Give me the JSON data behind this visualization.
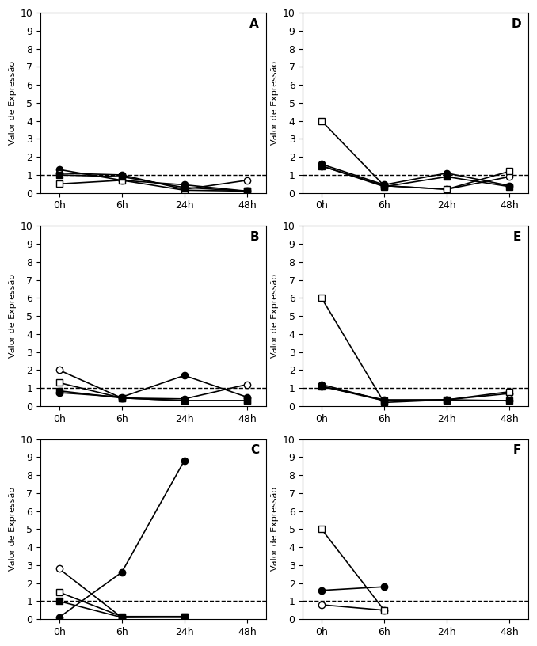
{
  "x_ticks": [
    0,
    1,
    2,
    3
  ],
  "x_labels": [
    "0h",
    "6h",
    "24h",
    "48h"
  ],
  "ylabel": "Valor de Expressão",
  "ylim": [
    0,
    10
  ],
  "yticks": [
    0,
    1,
    2,
    3,
    4,
    5,
    6,
    7,
    8,
    9,
    10
  ],
  "dashed_y": 1.0,
  "panels": [
    {
      "label": "A",
      "series": [
        {
          "style": "filled_circle",
          "y": [
            1.3,
            0.7,
            0.45,
            0.1
          ]
        },
        {
          "style": "open_circle",
          "y": [
            1.1,
            1.0,
            0.2,
            0.7
          ]
        },
        {
          "style": "open_square",
          "y": [
            0.5,
            0.7,
            0.15,
            0.1
          ]
        },
        {
          "style": "filled_square",
          "y": [
            1.0,
            0.9,
            0.3,
            0.1
          ]
        }
      ]
    },
    {
      "label": "D",
      "series": [
        {
          "style": "filled_circle",
          "y": [
            1.6,
            0.45,
            1.1,
            0.4
          ]
        },
        {
          "style": "open_circle",
          "y": [
            1.5,
            0.4,
            0.2,
            0.9
          ]
        },
        {
          "style": "open_square",
          "y": [
            4.0,
            0.4,
            0.2,
            1.2
          ]
        },
        {
          "style": "filled_square",
          "y": [
            1.5,
            0.35,
            0.9,
            0.35
          ]
        }
      ]
    },
    {
      "label": "B",
      "series": [
        {
          "style": "filled_circle",
          "y": [
            0.75,
            0.5,
            1.7,
            0.5
          ]
        },
        {
          "style": "open_circle",
          "y": [
            2.0,
            0.45,
            0.4,
            1.2
          ]
        },
        {
          "style": "open_square",
          "y": [
            1.3,
            0.45,
            0.3,
            0.3
          ]
        },
        {
          "style": "filled_square",
          "y": [
            0.85,
            0.45,
            0.3,
            0.3
          ]
        }
      ]
    },
    {
      "label": "E",
      "series": [
        {
          "style": "filled_circle",
          "y": [
            1.2,
            0.3,
            0.35,
            0.3
          ]
        },
        {
          "style": "open_circle",
          "y": [
            1.1,
            0.35,
            0.35,
            0.7
          ]
        },
        {
          "style": "open_square",
          "y": [
            6.0,
            0.2,
            0.35,
            0.8
          ]
        },
        {
          "style": "filled_square",
          "y": [
            1.1,
            0.3,
            0.3,
            0.3
          ]
        }
      ]
    },
    {
      "label": "C",
      "series": [
        {
          "style": "filled_circle",
          "y": [
            0.1,
            2.6,
            8.8,
            null
          ]
        },
        {
          "style": "open_circle",
          "y": [
            2.8,
            0.1,
            0.1,
            null
          ]
        },
        {
          "style": "open_square",
          "y": [
            1.5,
            0.15,
            0.15,
            null
          ]
        },
        {
          "style": "filled_square",
          "y": [
            1.0,
            0.1,
            0.15,
            null
          ]
        }
      ]
    },
    {
      "label": "F",
      "series": [
        {
          "style": "filled_circle",
          "y": [
            1.6,
            1.8,
            null,
            null
          ]
        },
        {
          "style": "open_circle",
          "y": [
            0.8,
            0.5,
            null,
            null
          ]
        },
        {
          "style": "open_square",
          "y": [
            5.0,
            0.5,
            null,
            null
          ]
        },
        {
          "style": "filled_square",
          "y": [
            null,
            null,
            null,
            null
          ]
        }
      ]
    }
  ]
}
